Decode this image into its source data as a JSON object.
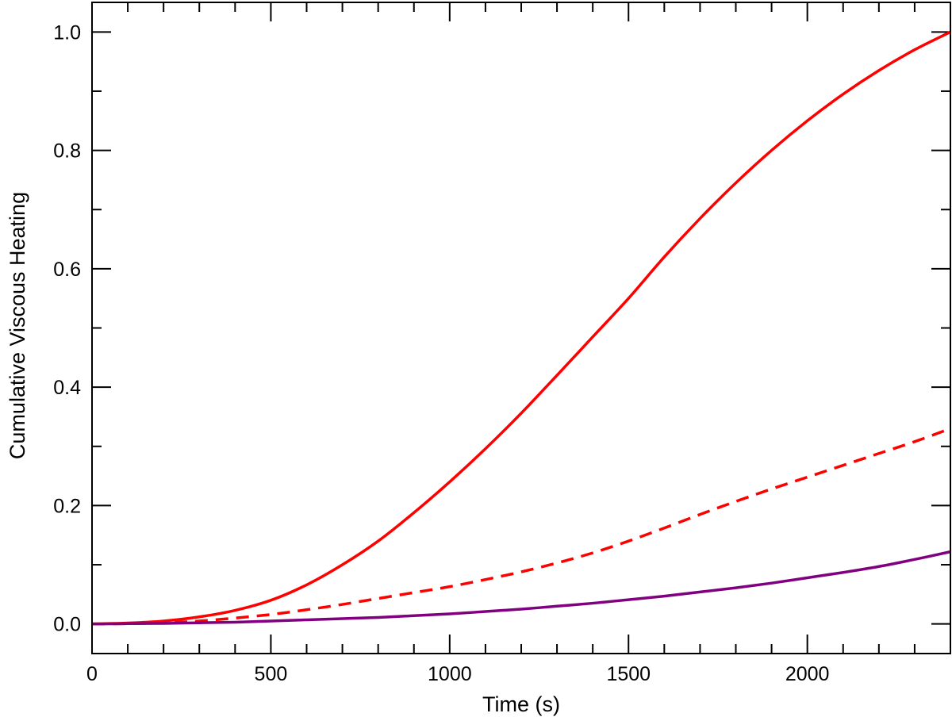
{
  "chart_data": {
    "type": "line",
    "title": "",
    "xlabel": "Time (s)",
    "ylabel": "Cumulative Viscous Heating",
    "xlim": [
      0,
      2400
    ],
    "ylim": [
      -0.05,
      1.05
    ],
    "grid": false,
    "legend": "none",
    "x_ticks": [
      0,
      500,
      1000,
      1500,
      2000
    ],
    "x_tick_labels": [
      "0",
      "500",
      "1000",
      "1500",
      "2000"
    ],
    "x_minor_step": 100,
    "y_ticks": [
      0.0,
      0.2,
      0.4,
      0.6,
      0.8,
      1.0
    ],
    "y_tick_labels": [
      "0.0",
      "0.2",
      "0.4",
      "0.6",
      "0.8",
      "1.0"
    ],
    "y_minor_step": 0.1,
    "series": [
      {
        "color": "#ff0000",
        "style": "solid",
        "x": [
          0,
          100,
          200,
          300,
          400,
          500,
          600,
          700,
          800,
          900,
          1000,
          1100,
          1200,
          1300,
          1400,
          1500,
          1600,
          1700,
          1800,
          1900,
          2000,
          2100,
          2200,
          2300,
          2400
        ],
        "y": [
          0.0,
          0.0015,
          0.005,
          0.012,
          0.023,
          0.04,
          0.066,
          0.1,
          0.14,
          0.188,
          0.24,
          0.296,
          0.356,
          0.42,
          0.485,
          0.55,
          0.62,
          0.685,
          0.745,
          0.8,
          0.85,
          0.895,
          0.935,
          0.97,
          1.0
        ]
      },
      {
        "color": "#ff0000",
        "style": "dashed",
        "x": [
          0,
          100,
          200,
          300,
          400,
          500,
          600,
          700,
          800,
          900,
          1000,
          1100,
          1200,
          1300,
          1400,
          1500,
          1600,
          1700,
          1800,
          1900,
          2000,
          2100,
          2200,
          2300,
          2400
        ],
        "y": [
          0.0,
          0.0005,
          0.002,
          0.005,
          0.01,
          0.016,
          0.024,
          0.033,
          0.043,
          0.053,
          0.063,
          0.075,
          0.088,
          0.103,
          0.12,
          0.14,
          0.162,
          0.185,
          0.207,
          0.228,
          0.248,
          0.268,
          0.288,
          0.308,
          0.33
        ]
      },
      {
        "color": "#800080",
        "style": "solid",
        "x": [
          0,
          100,
          200,
          300,
          400,
          500,
          600,
          700,
          800,
          900,
          1000,
          1100,
          1200,
          1300,
          1400,
          1500,
          1600,
          1700,
          1800,
          1900,
          2000,
          2100,
          2200,
          2300,
          2400
        ],
        "y": [
          0.0,
          0.0005,
          0.001,
          0.002,
          0.003,
          0.005,
          0.007,
          0.009,
          0.011,
          0.014,
          0.017,
          0.021,
          0.025,
          0.03,
          0.035,
          0.041,
          0.047,
          0.054,
          0.061,
          0.069,
          0.078,
          0.087,
          0.097,
          0.109,
          0.122
        ]
      }
    ]
  }
}
